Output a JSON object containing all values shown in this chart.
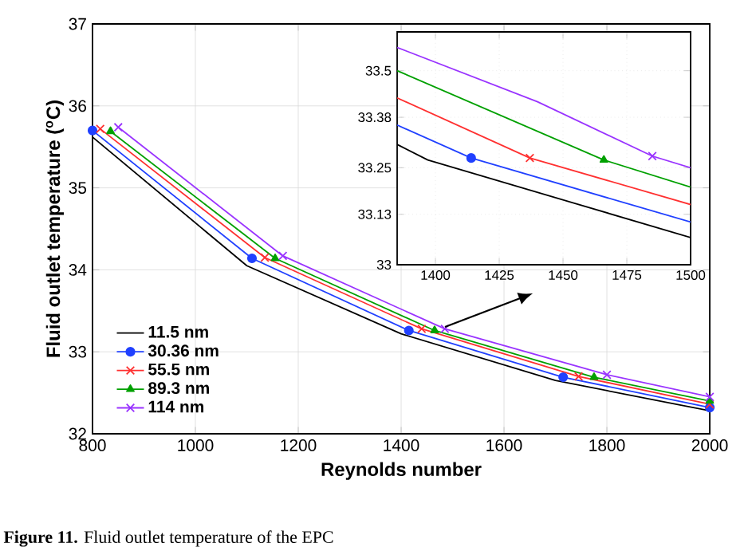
{
  "chart_data": [
    {
      "type": "line",
      "xlabel": "Reynolds number",
      "ylabel": "Fluid outlet temperature ($^{o}$C)",
      "xlim": [
        800,
        2000
      ],
      "xticks": [
        800,
        1000,
        1200,
        1400,
        1600,
        1800,
        2000
      ],
      "ylim": [
        32,
        37
      ],
      "yticks": [
        32,
        33,
        34,
        35,
        36,
        37
      ],
      "grid": true,
      "legend": "bottom left",
      "annotations": [
        "**Figure 11.** Fluid outlet temperature of the EPC"
      ],
      "series": [
        {
          "name": "11.5 nm",
          "color": "#000000",
          "marker": "none",
          "x": [
            800,
            1100,
            1400,
            1700,
            2000
          ],
          "values": [
            35.62,
            34.05,
            33.22,
            32.65,
            32.28
          ]
        },
        {
          "name": "30.36 nm",
          "color": "#2040ff",
          "marker": "circle",
          "x": [
            800,
            1110,
            1415,
            1715,
            2000
          ],
          "values": [
            35.7,
            34.14,
            33.26,
            32.69,
            32.32
          ]
        },
        {
          "name": "55.5 nm",
          "color": "#ff3030",
          "marker": "cross",
          "x": [
            815,
            1135,
            1440,
            1745,
            2000
          ],
          "values": [
            35.72,
            34.15,
            33.28,
            32.7,
            32.36
          ]
        },
        {
          "name": "89.3 nm",
          "color": "#00a000",
          "marker": "triangle",
          "x": [
            835,
            1155,
            1465,
            1775,
            2000
          ],
          "values": [
            35.69,
            34.14,
            33.26,
            32.69,
            32.4
          ]
        },
        {
          "name": "114 nm",
          "color": "#9933ff",
          "marker": "cross",
          "x": [
            850,
            1170,
            1485,
            1800,
            2000
          ],
          "values": [
            35.74,
            34.17,
            33.28,
            32.72,
            32.45
          ]
        }
      ]
    },
    {
      "type": "line",
      "xlim": [
        1385,
        1500
      ],
      "xticks": [
        1400,
        1425,
        1450,
        1475,
        1500
      ],
      "ylim": [
        33,
        33.6
      ],
      "yticks": [
        33,
        33.13,
        33.25,
        33.38,
        33.5
      ],
      "grid": true,
      "series": [
        {
          "color": "#000000",
          "marker": "none",
          "x": [
            1385,
            1397,
            1500
          ],
          "values": [
            33.31,
            33.27,
            33.07
          ]
        },
        {
          "color": "#2040ff",
          "marker": "none",
          "x": [
            1385,
            1414,
            1500
          ],
          "values": [
            33.36,
            33.275,
            33.11
          ]
        },
        {
          "color": "#ff3030",
          "marker": "none",
          "x": [
            1385,
            1437,
            1500
          ],
          "values": [
            33.43,
            33.275,
            33.155
          ]
        },
        {
          "color": "#00a000",
          "marker": "none",
          "x": [
            1385,
            1466,
            1500
          ],
          "values": [
            33.5,
            33.27,
            33.2
          ]
        },
        {
          "color": "#9933ff",
          "marker": "none",
          "x": [
            1385,
            1440,
            1485,
            1500
          ],
          "values": [
            33.56,
            33.42,
            33.28,
            33.25
          ]
        },
        {
          "type": "scatter",
          "color": "#2040ff",
          "marker": "circle",
          "x": [
            1414
          ],
          "values": [
            33.275
          ]
        },
        {
          "type": "scatter",
          "color": "#ff3030",
          "marker": "cross",
          "x": [
            1437
          ],
          "values": [
            33.275
          ]
        },
        {
          "type": "scatter",
          "color": "#00a000",
          "marker": "triangle",
          "x": [
            1466
          ],
          "values": [
            33.27
          ]
        },
        {
          "type": "scatter",
          "color": "#9933ff",
          "marker": "cross",
          "x": [
            1485
          ],
          "values": [
            33.28
          ]
        }
      ]
    }
  ]
}
